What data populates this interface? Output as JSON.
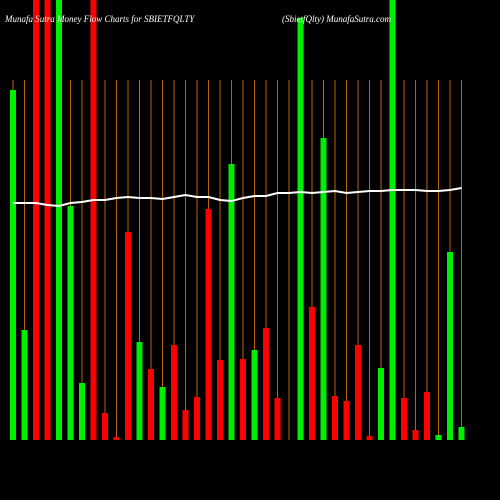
{
  "chart_data": {
    "type": "bar",
    "title": "Munafa Sutra Money Flow Charts for SBIETFQLTY",
    "subtitle": "(SbietfQlty) MunafaSutra.com",
    "categories": [
      null,
      null,
      null,
      null,
      null,
      null,
      null,
      null,
      null,
      null,
      null,
      null,
      null,
      null,
      null,
      null,
      null,
      null,
      null,
      null,
      null,
      null,
      null,
      null,
      null,
      null,
      null,
      null,
      null,
      null,
      null,
      null,
      null,
      null,
      null,
      null,
      null,
      null,
      null,
      null
    ],
    "values": [
      350,
      110,
      440,
      440,
      440,
      234,
      57,
      440,
      27,
      3,
      208,
      98,
      71,
      53,
      95,
      30,
      43,
      231,
      80,
      276,
      81,
      90,
      112,
      42,
      null,
      422,
      133,
      302,
      44,
      39,
      95,
      4,
      72,
      440,
      42,
      10,
      48,
      5,
      188,
      13
    ],
    "colors": [
      "#00ee00",
      "#00ee00",
      "#ff0000",
      "#ff0000",
      "#00ee00",
      "#00ee00",
      "#00ee00",
      "#ff0000",
      "#ff0000",
      "#ff0000",
      "#ff0000",
      "#00ee00",
      "#ff0000",
      "#00ee00",
      "#ff0000",
      "#ff0000",
      "#ff0000",
      "#ff0000",
      "#ff0000",
      "#00ee00",
      "#ff0000",
      "#00ee00",
      "#ff0000",
      "#ff0000",
      "#000000",
      "#00ee00",
      "#ff0000",
      "#00ee00",
      "#ff0000",
      "#ff0000",
      "#ff0000",
      "#ff0000",
      "#00ee00",
      "#00ee00",
      "#ff0000",
      "#ff0000",
      "#ff0000",
      "#00ee00",
      "#00ee00",
      "#00ee00"
    ],
    "line": {
      "color": "#ffffff",
      "values": [
        237,
        237,
        237,
        235,
        234,
        237,
        238,
        240,
        240,
        242,
        243,
        242,
        242,
        241,
        243,
        245,
        243,
        243,
        240,
        239,
        242,
        244,
        244,
        247,
        247,
        248,
        247,
        248,
        249,
        247,
        248,
        249,
        249,
        250,
        250,
        250,
        249,
        249,
        250,
        252
      ]
    },
    "ylim": [
      0,
      440
    ],
    "grid": true,
    "grid_color": "#b8650a"
  }
}
